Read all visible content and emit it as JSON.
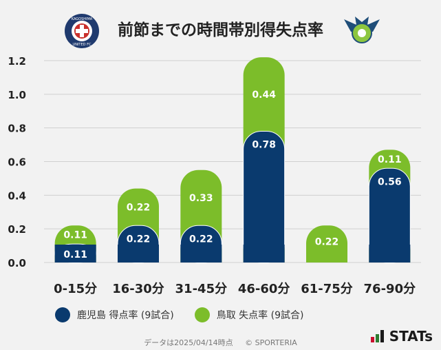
{
  "title": "前節までの時間帯別得失点率",
  "logos": {
    "left": {
      "name": "kagoshima-united-logo",
      "text_top": "KAGOSHIMA",
      "text_bottom": "UNITED FC",
      "color": "#1f3a6e"
    },
    "right": {
      "name": "gainare-tottori-logo",
      "color": "#6aa84f"
    }
  },
  "chart_data": {
    "type": "bar",
    "stacked": true,
    "categories": [
      "0-15分",
      "16-30分",
      "31-45分",
      "46-60分",
      "61-75分",
      "76-90分"
    ],
    "series": [
      {
        "name": "鹿児島 得点率 (9試合)",
        "color": "#0a3a6e",
        "values": [
          0.11,
          0.22,
          0.22,
          0.78,
          0,
          0.56
        ],
        "labels": [
          "0.11",
          "0.22",
          "0.22",
          "0.78",
          "",
          "0.56"
        ]
      },
      {
        "name": "鳥取 失点率 (9試合)",
        "color": "#7cbd2a",
        "values": [
          0.11,
          0.22,
          0.33,
          0.44,
          0.22,
          0.11
        ],
        "labels": [
          "0.11",
          "0.22",
          "0.33",
          "0.44",
          "0.22",
          "0.11"
        ]
      }
    ],
    "yticks": [
      "0.0",
      "0.2",
      "0.4",
      "0.6",
      "0.8",
      "1.0",
      "1.2"
    ],
    "ylim": [
      0,
      1.2
    ],
    "grid": true,
    "legend_position": "bottom-left"
  },
  "footer": {
    "note": "データは2025/04/14時点",
    "copyright": "© SPORTERIA"
  },
  "brand": {
    "name": "STATs",
    "colors": [
      "#c8102e",
      "#2e7d32",
      "#1a1a1a"
    ]
  }
}
